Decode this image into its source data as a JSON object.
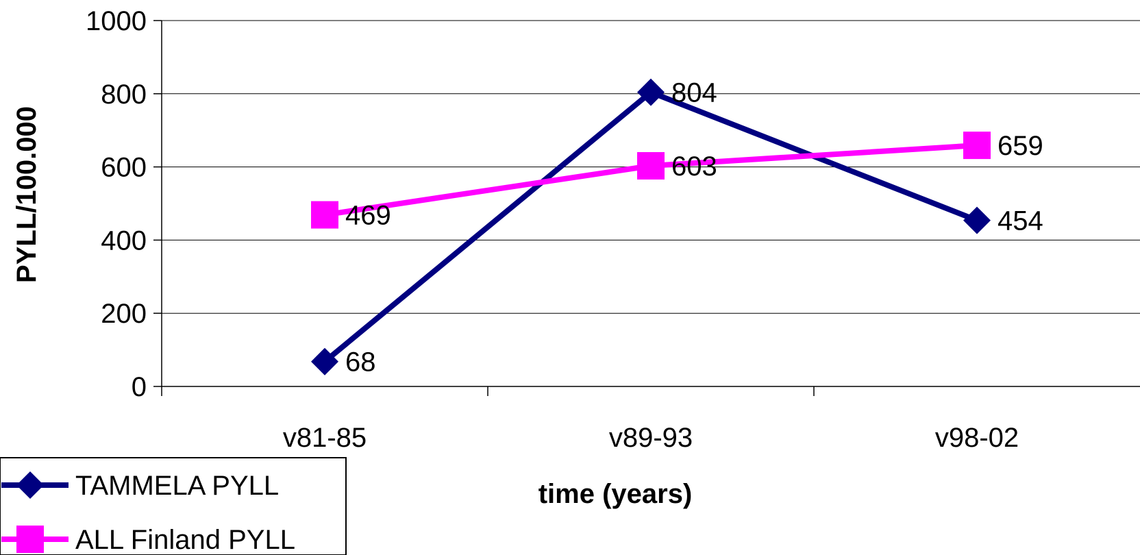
{
  "chart_data": {
    "type": "line",
    "title": "",
    "xlabel": "time (years)",
    "ylabel": "PYLL/100.000",
    "categories": [
      "v81-85",
      "v89-93",
      "v98-02"
    ],
    "ylim": [
      0,
      1000
    ],
    "yticks": [
      "0",
      "200",
      "400",
      "600",
      "800",
      "1000"
    ],
    "grid": true,
    "legend_position": "bottom-left",
    "series": [
      {
        "name": "TAMMELA  PYLL",
        "values": [
          68,
          804,
          454
        ],
        "labels": [
          "68",
          "804",
          "454"
        ],
        "color": "#000080",
        "marker": "diamond"
      },
      {
        "name": "ALL Finland PYLL",
        "values": [
          469,
          603,
          659
        ],
        "labels": [
          "469",
          "603",
          "659"
        ],
        "color": "#FF00FF",
        "marker": "square"
      }
    ]
  }
}
